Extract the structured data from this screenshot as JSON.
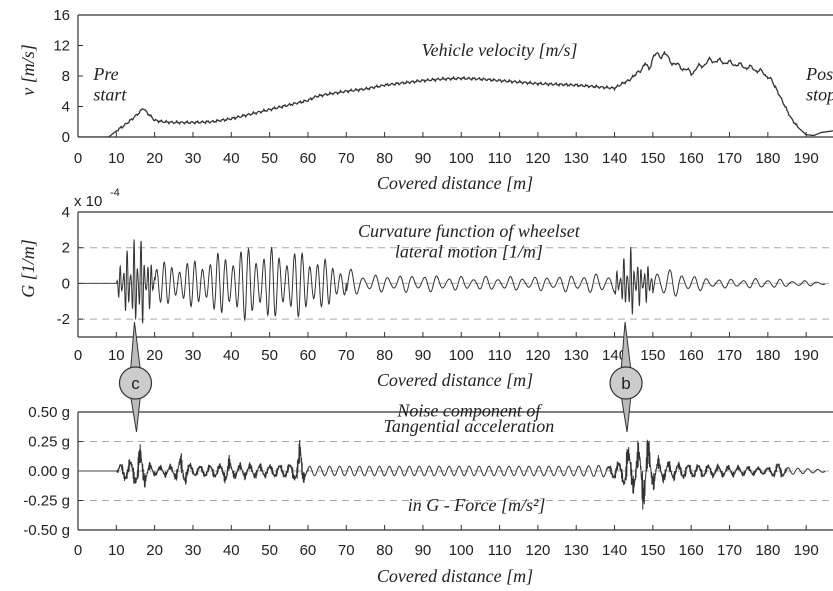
{
  "chart_data": [
    {
      "type": "line",
      "ylabel": "v [m/s]",
      "xlabel": "Covered distance [m]",
      "xlim": [
        0,
        197
      ],
      "ylim": [
        0,
        16
      ],
      "xticks": [
        0,
        10,
        20,
        30,
        40,
        50,
        60,
        70,
        80,
        90,
        100,
        110,
        120,
        130,
        140,
        150,
        160,
        170,
        180,
        190
      ],
      "yticks": [
        0,
        4,
        8,
        12,
        16
      ],
      "grid": false,
      "annotations": [
        {
          "text": "Vehicle velocity [m/s]",
          "x": 110,
          "y": 10.6
        },
        {
          "text": "Pre",
          "x": 4,
          "y": 7.5
        },
        {
          "text": "start",
          "x": 4,
          "y": 4.8
        },
        {
          "text": "Post",
          "x": 190,
          "y": 7.5
        },
        {
          "text": "stop",
          "x": 190,
          "y": 4.8
        }
      ],
      "series": [
        {
          "x": [
            0,
            8,
            10,
            12,
            14,
            16,
            17,
            18,
            20,
            22,
            25,
            30,
            35,
            40,
            45,
            50,
            55,
            60,
            62,
            65,
            70,
            75,
            80,
            85,
            90,
            95,
            100,
            105,
            110,
            115,
            120,
            125,
            130,
            135,
            140,
            142,
            144,
            146,
            148,
            149,
            150,
            151,
            152,
            153,
            154,
            155,
            156,
            158,
            160,
            162,
            164,
            165,
            166,
            168,
            170,
            172,
            174,
            176,
            178,
            180,
            182,
            184,
            186,
            188,
            190,
            192,
            194,
            197
          ],
          "values": [
            0,
            0,
            0.8,
            1.5,
            2.3,
            3.2,
            3.8,
            3.2,
            2.2,
            2.0,
            1.9,
            1.9,
            2.0,
            2.4,
            3.0,
            3.6,
            4.2,
            4.8,
            5.3,
            5.6,
            6.0,
            6.3,
            6.8,
            7.1,
            7.4,
            7.6,
            7.7,
            7.6,
            7.4,
            7.2,
            7.0,
            6.9,
            6.8,
            6.6,
            6.4,
            7.0,
            7.5,
            8.5,
            9.5,
            8.9,
            10.5,
            10.8,
            10.6,
            11.0,
            10.3,
            9.8,
            9.5,
            9.0,
            8.4,
            9.2,
            9.7,
            10.1,
            10.0,
            9.9,
            9.7,
            9.5,
            9.2,
            9.0,
            8.6,
            8.0,
            6.5,
            4.5,
            2.5,
            1.2,
            0.3,
            0.2,
            0.6,
            0.8
          ]
        }
      ]
    },
    {
      "type": "line",
      "ylabel": "G [1/m]",
      "xlabel": "Covered distance [m]",
      "scale_label": "x 10",
      "scale_exponent": "-4",
      "xlim": [
        0,
        197
      ],
      "ylim": [
        -3,
        4
      ],
      "xticks": [
        0,
        10,
        20,
        30,
        40,
        50,
        60,
        70,
        80,
        90,
        100,
        110,
        120,
        130,
        140,
        150,
        160,
        170,
        180,
        190
      ],
      "yticks": [
        -2,
        0,
        2,
        4
      ],
      "grid": "dashed at -2, 0, 2",
      "annotations": [
        {
          "text": "Curvature function of wheelset",
          "x": 102,
          "y": 2.6
        },
        {
          "text": "lateral motion [1/m]",
          "x": 102,
          "y": 1.45
        },
        {
          "text": "c",
          "x": 15,
          "y": -5.7
        },
        {
          "text": "b",
          "x": 143,
          "y": -5.7
        }
      ],
      "series": [
        {
          "note": "oscillation envelope (peak amplitude, x 10^-4 1/m)",
          "x": [
            10,
            11,
            13,
            15,
            16,
            17,
            18,
            20,
            25,
            30,
            35,
            40,
            45,
            50,
            55,
            60,
            65,
            70,
            75,
            80,
            90,
            100,
            110,
            120,
            130,
            140,
            142,
            144,
            146,
            150,
            155,
            160,
            165,
            170,
            180,
            185,
            190,
            195
          ],
          "values": [
            0,
            1.3,
            2.0,
            2.6,
            3.4,
            2.2,
            1.6,
            1.2,
            1.2,
            1.3,
            1.6,
            1.9,
            2.1,
            2.0,
            1.9,
            1.8,
            1.3,
            0.9,
            0.5,
            0.5,
            0.5,
            0.4,
            0.4,
            0.4,
            0.5,
            0.6,
            1.2,
            2.3,
            1.3,
            1.0,
            0.8,
            0.5,
            0.3,
            0.25,
            0.3,
            0.2,
            0.15,
            0.1
          ]
        }
      ]
    },
    {
      "type": "line",
      "xlabel": "Covered distance [m]",
      "xlim": [
        0,
        197
      ],
      "ylim": [
        -0.5,
        0.5
      ],
      "xticks": [
        0,
        10,
        20,
        30,
        40,
        50,
        60,
        70,
        80,
        90,
        100,
        110,
        120,
        130,
        140,
        150,
        160,
        170,
        180,
        190
      ],
      "yticks": [
        -0.5,
        -0.25,
        0,
        0.25,
        0.5
      ],
      "ytick_labels": [
        "-0.50 g",
        "-0.25 g",
        "0.00 g",
        "0.25 g",
        "0.50 g"
      ],
      "grid": "dashed at -0.25, 0, 0.25",
      "annotations": [
        {
          "text": "Noise component of",
          "x": 102,
          "y": 0.46
        },
        {
          "text": "Tangential acceleration",
          "x": 102,
          "y": 0.33
        },
        {
          "text": "in G - Force [m/s²]",
          "x": 104,
          "y": -0.34
        }
      ],
      "series": [
        {
          "note": "oscillation envelope (peak amplitude, g)",
          "x": [
            10,
            11,
            13,
            15,
            16,
            17,
            18,
            20,
            25,
            27,
            30,
            38,
            39,
            40,
            45,
            50,
            55,
            57,
            58,
            59,
            60,
            65,
            70,
            80,
            90,
            100,
            110,
            120,
            130,
            138,
            140,
            142,
            143,
            145,
            147,
            148,
            150,
            152,
            155,
            160,
            165,
            170,
            175,
            180,
            183,
            185,
            190,
            195
          ],
          "values": [
            0,
            0.09,
            0.12,
            0.15,
            0.28,
            0.2,
            0.1,
            0.05,
            0.07,
            0.18,
            0.06,
            0.08,
            0.2,
            0.08,
            0.08,
            0.07,
            0.08,
            0.12,
            0.36,
            0.1,
            0.04,
            0.04,
            0.04,
            0.04,
            0.04,
            0.04,
            0.04,
            0.04,
            0.04,
            0.05,
            0.1,
            0.12,
            0.28,
            0.22,
            0.32,
            0.42,
            0.18,
            0.12,
            0.1,
            0.08,
            0.07,
            0.06,
            0.05,
            0.04,
            0.1,
            0.03,
            0.02,
            0.01
          ]
        }
      ]
    }
  ]
}
